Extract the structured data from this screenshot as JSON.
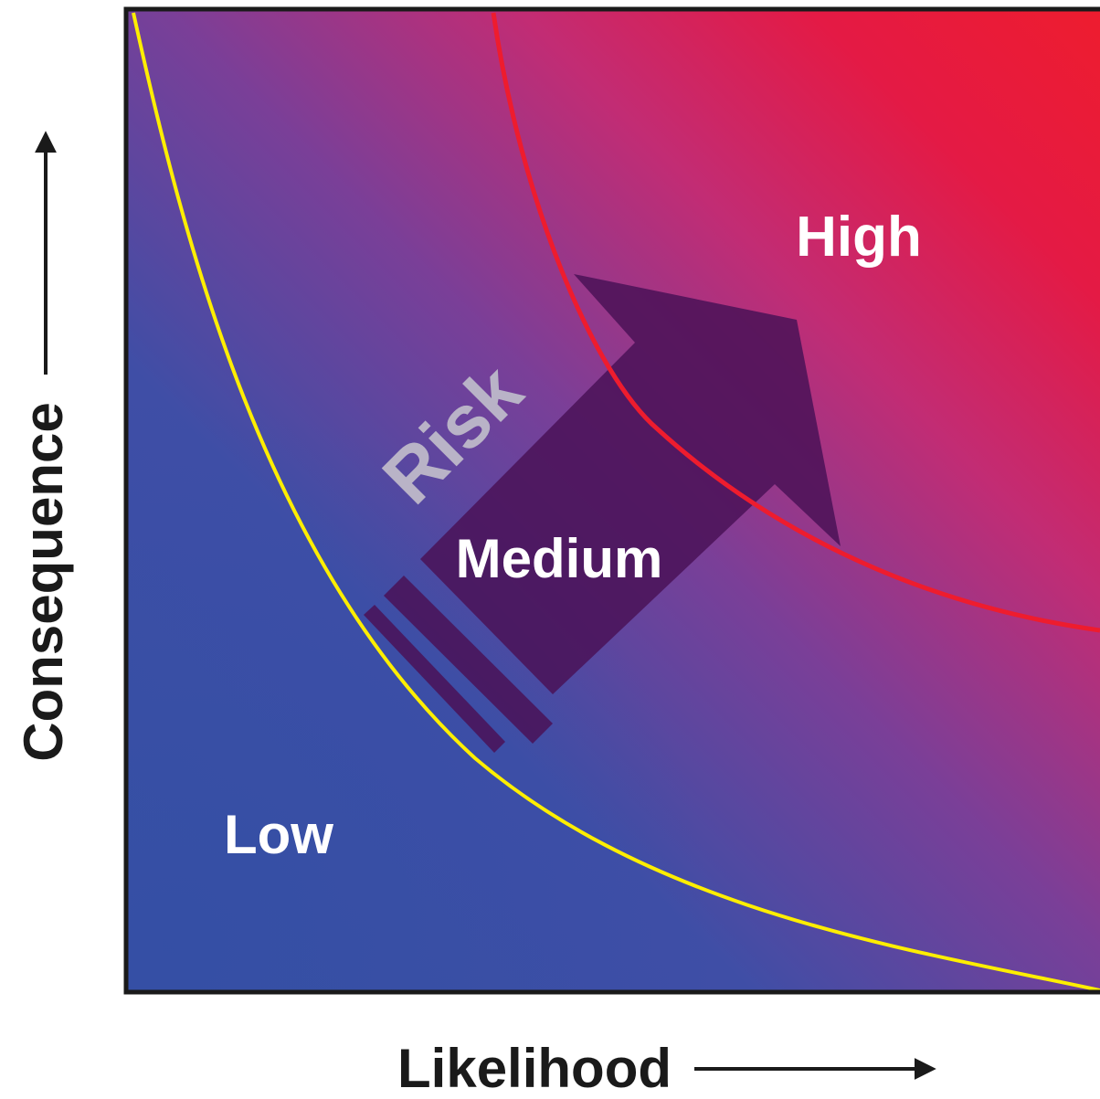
{
  "diagram": {
    "zones": {
      "low": "Low",
      "medium": "Medium",
      "high": "High"
    },
    "arrow_label": "Risk",
    "y_axis_label": "Consequence",
    "x_axis_label": "Likelihood",
    "colors": {
      "low_zone": "#3a50a4",
      "high_zone": "#ee1c2e",
      "mid_zone": "#8c3b93",
      "yellow_boundary": "#ffee00",
      "red_boundary": "#ee1c2e",
      "risk_arrow": "#4a1257",
      "axis": "#1a1a1a"
    }
  }
}
